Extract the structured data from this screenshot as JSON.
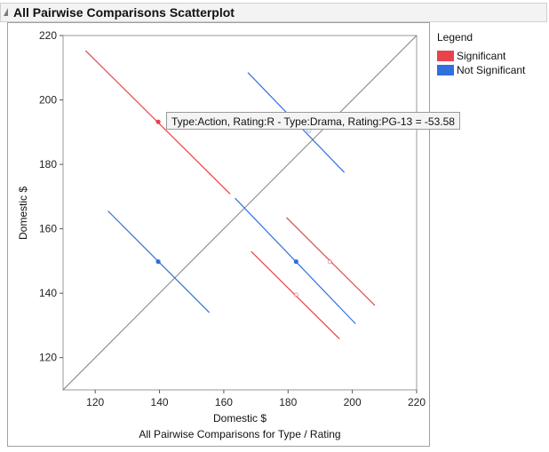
{
  "outline": {
    "title": "All Pairwise Comparisons Scatterplot"
  },
  "legend": {
    "title": "Legend",
    "items": [
      {
        "label": "Significant",
        "color": "#e8434b"
      },
      {
        "label": "Not Significant",
        "color": "#2f6fe0"
      }
    ]
  },
  "tooltip": {
    "text": "Type:Action, Rating:R - Type:Drama, Rating:PG-13 = -53.58"
  },
  "chart_data": {
    "type": "scatter",
    "title": "",
    "xlabel": "Domestic $",
    "ylabel": "Domestic $",
    "caption": "All Pairwise Comparisons for Type / Rating",
    "xlim": [
      110,
      220
    ],
    "ylim": [
      110,
      220
    ],
    "xticks": [
      120,
      140,
      160,
      180,
      200,
      220
    ],
    "yticks": [
      120,
      140,
      160,
      180,
      200,
      220
    ],
    "grid": false,
    "legend_position": "right",
    "diagonal_reference_line": true,
    "colors": {
      "Significant": "#e8434b",
      "Not Significant": "#2f6fe0",
      "diagonal": "#808080"
    },
    "series": [
      {
        "name": "Significant",
        "comparisons": [
          {
            "point": [
              139.6,
              193.2
            ],
            "segment": [
              [
                117,
                215.3
              ],
              [
                162,
                170.8
              ]
            ],
            "marker": "filled"
          },
          {
            "point": [
              193,
              149.8
            ],
            "segment": [
              [
                179.5,
                163.5
              ],
              [
                207,
                136.2
              ]
            ],
            "marker": "open"
          },
          {
            "point": [
              182.5,
              139.5
            ],
            "segment": [
              [
                168.5,
                153
              ],
              [
                196,
                125.8
              ]
            ],
            "marker": "open"
          }
        ]
      },
      {
        "name": "Not Significant",
        "comparisons": [
          {
            "point": [
              186.5,
              190.5
            ],
            "segment": [
              [
                167.5,
                208.5
              ],
              [
                197.5,
                177.5
              ]
            ],
            "marker": "open"
          },
          {
            "point": [
              139.6,
              149.8
            ],
            "segment": [
              [
                124,
                165.5
              ],
              [
                155.5,
                134
              ]
            ],
            "marker": "filled"
          },
          {
            "point": [
              182.5,
              149.8
            ],
            "segment": [
              [
                163.5,
                169.5
              ],
              [
                201,
                130.5
              ]
            ],
            "marker": "filled"
          }
        ]
      }
    ]
  }
}
